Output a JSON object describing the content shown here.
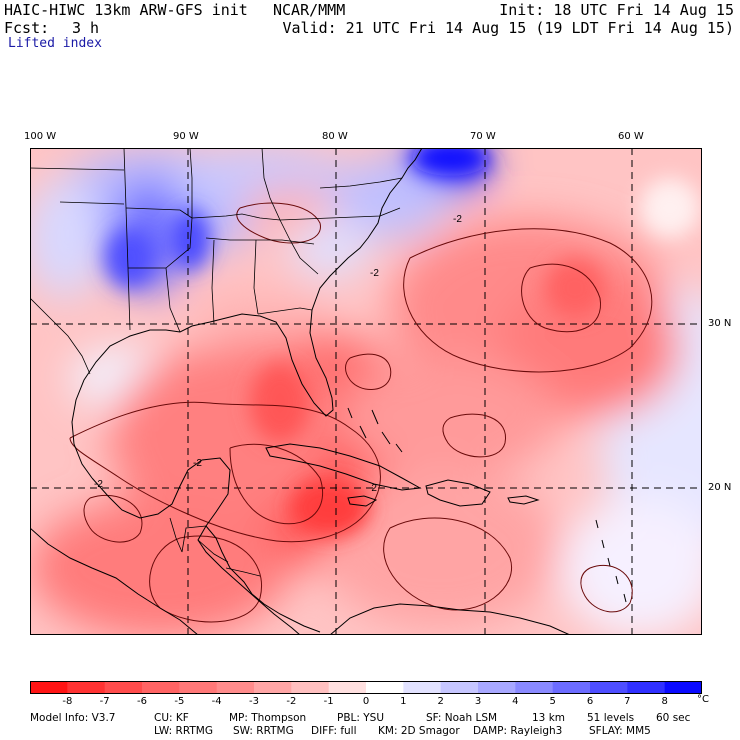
{
  "header": {
    "model_title": "HAIC-HIWC 13km ARW-GFS init",
    "organization": "NCAR/MMM",
    "init_time": "Init: 18 UTC Fri 14 Aug 15",
    "forecast_label": "Fcst:",
    "forecast_hours": "3 h",
    "valid_time": "Valid: 21 UTC Fri 14 Aug 15 (19 LDT Fri 14 Aug 15)",
    "field_name": "Lifted index"
  },
  "map": {
    "longitude_labels": [
      "100 W",
      "90 W",
      "80 W",
      "70 W",
      "60 W"
    ],
    "latitude_labels": [
      "30 N",
      "20 N"
    ],
    "contour_label": "-2",
    "colors": {
      "boundary": "#000000",
      "contour": "#6a0a0a",
      "gridline": "#000000"
    }
  },
  "colorbar": {
    "labels": [
      "-8",
      "-7",
      "-6",
      "-5",
      "-4",
      "-3",
      "-2",
      "-1",
      "0",
      "1",
      "2",
      "3",
      "4",
      "5",
      "6",
      "7",
      "8"
    ],
    "unit": "°C",
    "colors": [
      "#ff1414",
      "#ff3232",
      "#ff4c4c",
      "#ff6464",
      "#ff7878",
      "#ff8c8c",
      "#ffa6a6",
      "#ffc0c0",
      "#ffe0e0",
      "#ffffff",
      "#e2e2ff",
      "#c6c6ff",
      "#a8a8ff",
      "#8a8aff",
      "#6c6cff",
      "#4e4eff",
      "#3030ff",
      "#0a0aff"
    ]
  },
  "model_info": {
    "line1": [
      "Model Info: V3.7",
      "CU: KF",
      "MP: Thompson",
      "PBL: YSU",
      "SF: Noah LSM",
      "13 km",
      "51 levels",
      "60 sec"
    ],
    "line2": [
      "LW: RRTMG",
      "SW: RRTMG",
      "DIFF: full",
      "KM: 2D Smagor",
      "DAMP: Rayleigh3",
      "SFLAY: MM5"
    ]
  }
}
